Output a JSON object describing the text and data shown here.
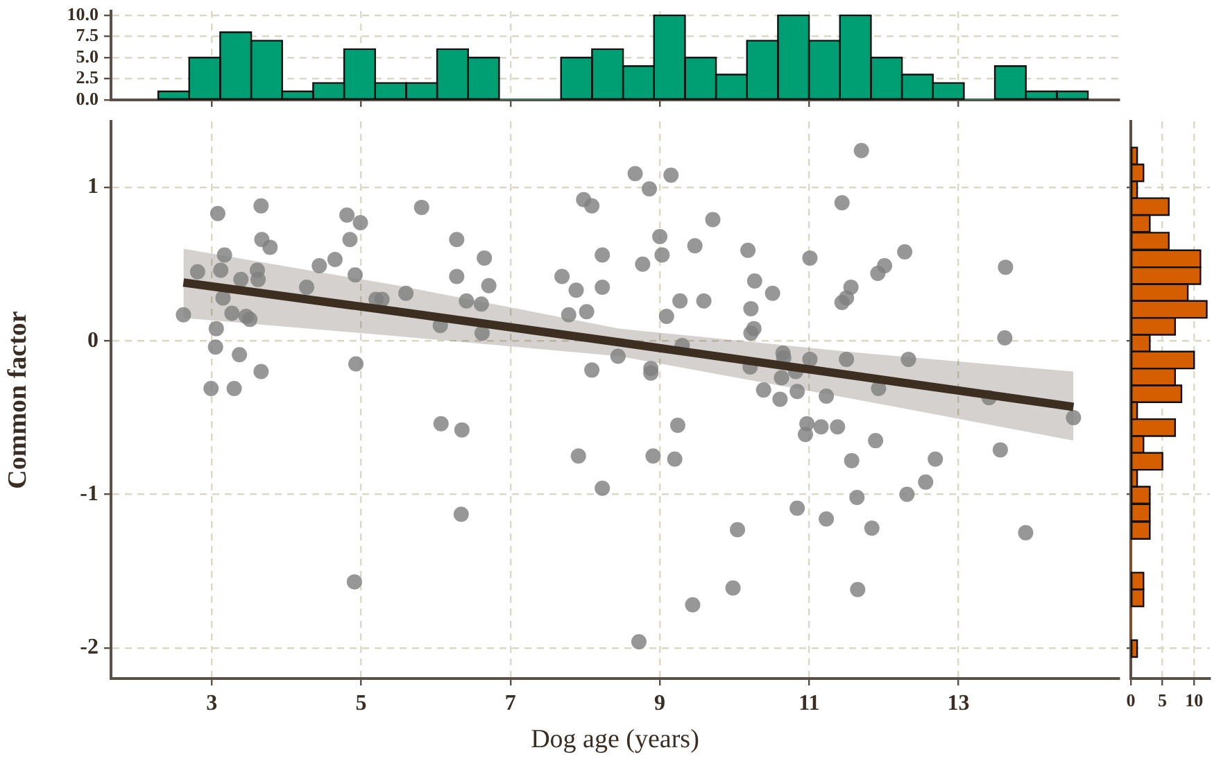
{
  "chart_data": [
    {
      "type": "histogram",
      "color": "#009e73",
      "xlim": [
        1.65,
        15.15
      ],
      "xticks": [
        3,
        5,
        7,
        9,
        11,
        13
      ],
      "ylim": [
        0,
        10.5
      ],
      "yticks": [
        {
          "value": 0,
          "label": "0.0"
        },
        {
          "value": 2.5,
          "label": "2.5"
        },
        {
          "value": 5,
          "label": "5.0"
        },
        {
          "value": 7.5,
          "label": "7.5"
        },
        {
          "value": 10,
          "label": "10.0"
        }
      ],
      "grid": true,
      "tick_labels": "y",
      "bins": [
        2.28,
        2.7,
        3.11,
        3.53,
        3.94,
        4.36,
        4.77,
        5.19,
        5.6,
        6.02,
        6.43,
        6.85,
        7.26,
        7.68,
        8.09,
        8.51,
        8.92,
        9.34,
        9.75,
        10.17,
        10.58,
        11.0,
        11.41,
        11.83,
        12.24,
        12.66,
        13.07,
        13.49,
        13.9,
        14.32,
        14.73
      ],
      "values": [
        1,
        5,
        8,
        7,
        1,
        2,
        6,
        2,
        2,
        6,
        5,
        0,
        0,
        5,
        6,
        4,
        10,
        5,
        3,
        7,
        10,
        7,
        10,
        5,
        3,
        2,
        0,
        4,
        1,
        1
      ]
    },
    {
      "type": "scatter",
      "xlabel": "Dog age (years)",
      "ylabel": "Common factor",
      "xlim": [
        1.65,
        15.15
      ],
      "ylim": [
        -2.2,
        1.43
      ],
      "xticks": [
        3,
        5,
        7,
        9,
        11,
        13
      ],
      "yticks": [
        -2,
        -1,
        0,
        1
      ],
      "grid": true,
      "series": [
        {
          "type": "scatter",
          "marker": "circle",
          "color": "#808080",
          "x": [
            3.08,
            3.66,
            4.81,
            4.99,
            5.81,
            7.98,
            8.09,
            3.67,
            3.78,
            4.85,
            6.28,
            6.65,
            8.23,
            3.17,
            2.81,
            3.12,
            3.61,
            4.44,
            4.65,
            4.92,
            6.28,
            6.71,
            7.69,
            7.88,
            8.23,
            3.39,
            3.62,
            3.15,
            4.27,
            5.2,
            5.28,
            5.6,
            6.41,
            6.61,
            2.62,
            3.27,
            3.46,
            3.51,
            7.78,
            8.02,
            6.06,
            6.62,
            3.06,
            3.05,
            3.37,
            4.93,
            3.66,
            8.44,
            8.09,
            2.99,
            3.3,
            6.07,
            6.35,
            7.91,
            8.23,
            6.34,
            4.91,
            11.7,
            8.67,
            9.15,
            8.86,
            11.44,
            9.71,
            9.0,
            9.03,
            9.47,
            10.18,
            8.77,
            11.01,
            12.28,
            12.01,
            11.92,
            13.63,
            10.27,
            10.51,
            11.56,
            11.5,
            11.44,
            9.27,
            9.59,
            10.22,
            9.09,
            10.26,
            10.22,
            13.62,
            9.3,
            8.88,
            8.88,
            10.65,
            10.66,
            11.01,
            11.5,
            12.33,
            10.21,
            10.63,
            10.82,
            11.93,
            10.39,
            10.61,
            10.84,
            11.23,
            13.41,
            14.54,
            9.24,
            10.97,
            11.16,
            11.38,
            10.95,
            11.89,
            8.91,
            9.2,
            11.57,
            12.69,
            13.56,
            12.56,
            12.31,
            11.64,
            10.84,
            11.23,
            11.84,
            10.04,
            13.9,
            9.98,
            11.65,
            9.44,
            8.72
          ],
          "values": [
            0.83,
            0.88,
            0.82,
            0.77,
            0.87,
            0.92,
            0.88,
            0.66,
            0.61,
            0.66,
            0.66,
            0.54,
            0.56,
            0.56,
            0.45,
            0.46,
            0.46,
            0.49,
            0.53,
            0.43,
            0.42,
            0.36,
            0.42,
            0.33,
            0.35,
            0.4,
            0.4,
            0.28,
            0.35,
            0.27,
            0.27,
            0.31,
            0.26,
            0.24,
            0.17,
            0.18,
            0.16,
            0.14,
            0.17,
            0.19,
            0.1,
            0.05,
            0.08,
            -0.04,
            -0.09,
            -0.15,
            -0.2,
            -0.1,
            -0.19,
            -0.31,
            -0.31,
            -0.54,
            -0.58,
            -0.75,
            -0.96,
            -1.13,
            -1.57,
            1.24,
            1.09,
            1.08,
            0.99,
            0.9,
            0.79,
            0.68,
            0.56,
            0.62,
            0.59,
            0.5,
            0.54,
            0.58,
            0.49,
            0.44,
            0.48,
            0.39,
            0.31,
            0.35,
            0.28,
            0.25,
            0.26,
            0.26,
            0.21,
            0.16,
            0.08,
            0.05,
            0.02,
            -0.03,
            -0.18,
            -0.21,
            -0.08,
            -0.11,
            -0.12,
            -0.12,
            -0.12,
            -0.17,
            -0.24,
            -0.2,
            -0.31,
            -0.32,
            -0.38,
            -0.33,
            -0.36,
            -0.37,
            -0.5,
            -0.55,
            -0.54,
            -0.56,
            -0.56,
            -0.61,
            -0.65,
            -0.75,
            -0.77,
            -0.78,
            -0.77,
            -0.71,
            -0.92,
            -1.0,
            -1.02,
            -1.09,
            -1.16,
            -1.22,
            -1.23,
            -1.25,
            -1.61,
            -1.62,
            -1.72,
            -1.96
          ]
        },
        {
          "type": "line",
          "color": "#3d2e22",
          "x": [
            2.62,
            5.5,
            8.46,
            11.5,
            14.54
          ],
          "values": [
            0.38,
            0.19,
            -0.01,
            -0.22,
            -0.43
          ],
          "lower": [
            0.15,
            0.03,
            -0.1,
            -0.37,
            -0.65
          ],
          "upper": [
            0.6,
            0.36,
            0.08,
            -0.07,
            -0.2
          ]
        }
      ]
    },
    {
      "type": "histogram",
      "orientation": "horizontal",
      "color": "#d55e00",
      "xlim": [
        0,
        12.5
      ],
      "xticks": [
        0,
        5,
        10
      ],
      "ylim": [
        -2.2,
        1.43
      ],
      "yticks": [
        -2,
        -1,
        0,
        1
      ],
      "grid": true,
      "tick_labels": "x",
      "bins": [
        -2.06,
        -1.95,
        -1.84,
        -1.73,
        -1.62,
        -1.51,
        -1.4,
        -1.29,
        -1.18,
        -1.06,
        -0.95,
        -0.84,
        -0.73,
        -0.62,
        -0.51,
        -0.4,
        -0.29,
        -0.18,
        -0.07,
        0.04,
        0.15,
        0.26,
        0.37,
        0.48,
        0.59,
        0.71,
        0.82,
        0.93,
        1.04,
        1.15,
        1.26
      ],
      "values": [
        1,
        0,
        0,
        2,
        2,
        0,
        0,
        3,
        3,
        3,
        1,
        5,
        2,
        7,
        1,
        8,
        7,
        10,
        3,
        7,
        12,
        9,
        11,
        11,
        6,
        3,
        6,
        1,
        2,
        1
      ]
    }
  ]
}
